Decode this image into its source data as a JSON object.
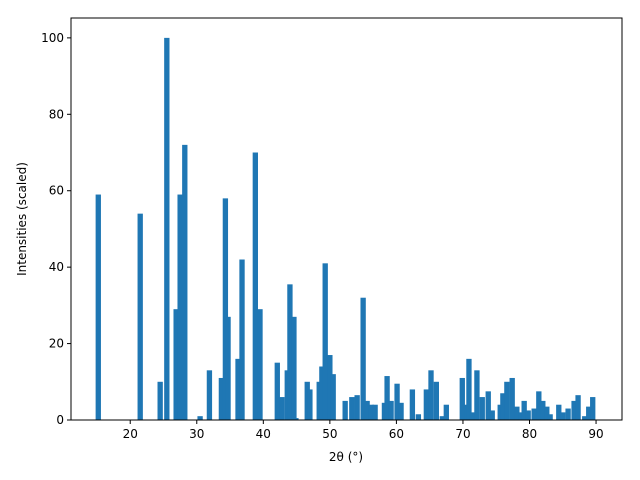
{
  "chart_data": {
    "type": "bar",
    "color": "#1f77b4",
    "x_label": "2θ (°)",
    "y_label": "Intensities (scaled)",
    "x": [
      15.2,
      21.5,
      24.5,
      25.5,
      26.9,
      27.5,
      28.2,
      30.5,
      31.9,
      33.7,
      34.3,
      34.7,
      36.2,
      36.8,
      38.8,
      39.5,
      42.1,
      42.8,
      43.6,
      44.0,
      44.6,
      44.9,
      46.6,
      47.0,
      48.4,
      48.8,
      49.3,
      50.0,
      50.5,
      52.3,
      53.3,
      54.1,
      55.0,
      55.6,
      56.2,
      56.8,
      58.2,
      58.6,
      59.2,
      60.1,
      60.7,
      62.4,
      63.3,
      64.5,
      65.2,
      66.0,
      66.9,
      67.5,
      69.9,
      70.6,
      70.9,
      71.4,
      72.1,
      72.9,
      73.8,
      74.4,
      75.6,
      76.0,
      76.6,
      77.4,
      78.1,
      78.7,
      79.2,
      79.8,
      80.7,
      81.4,
      82.0,
      82.6,
      83.1,
      84.4,
      85.0,
      85.8,
      86.7,
      87.3,
      88.3,
      88.9,
      89.5
    ],
    "values": [
      59,
      54,
      10,
      100,
      29,
      59,
      72,
      1,
      13,
      11,
      58,
      27,
      16,
      42,
      70,
      29,
      15,
      6,
      13,
      35.5,
      27,
      0.5,
      10,
      8,
      10,
      14,
      41,
      17,
      12,
      5,
      6,
      6.5,
      32,
      5,
      4,
      4,
      4.5,
      11.5,
      5,
      9.5,
      4.5,
      8,
      1.5,
      8,
      13,
      10,
      1,
      4,
      11,
      4,
      16,
      2,
      13,
      6,
      7.5,
      2.5,
      4,
      7,
      10,
      11,
      3.5,
      2,
      5,
      2.5,
      3,
      7.5,
      5,
      3.5,
      1.5,
      4,
      2,
      3,
      5,
      6.5,
      1,
      3.5,
      6
    ],
    "xlim": [
      11.1,
      93.9
    ],
    "ylim": [
      0,
      105.2
    ],
    "xticks": [
      20,
      30,
      40,
      50,
      60,
      70,
      80,
      90
    ],
    "yticks": [
      0,
      20,
      40,
      60,
      80,
      100
    ]
  }
}
